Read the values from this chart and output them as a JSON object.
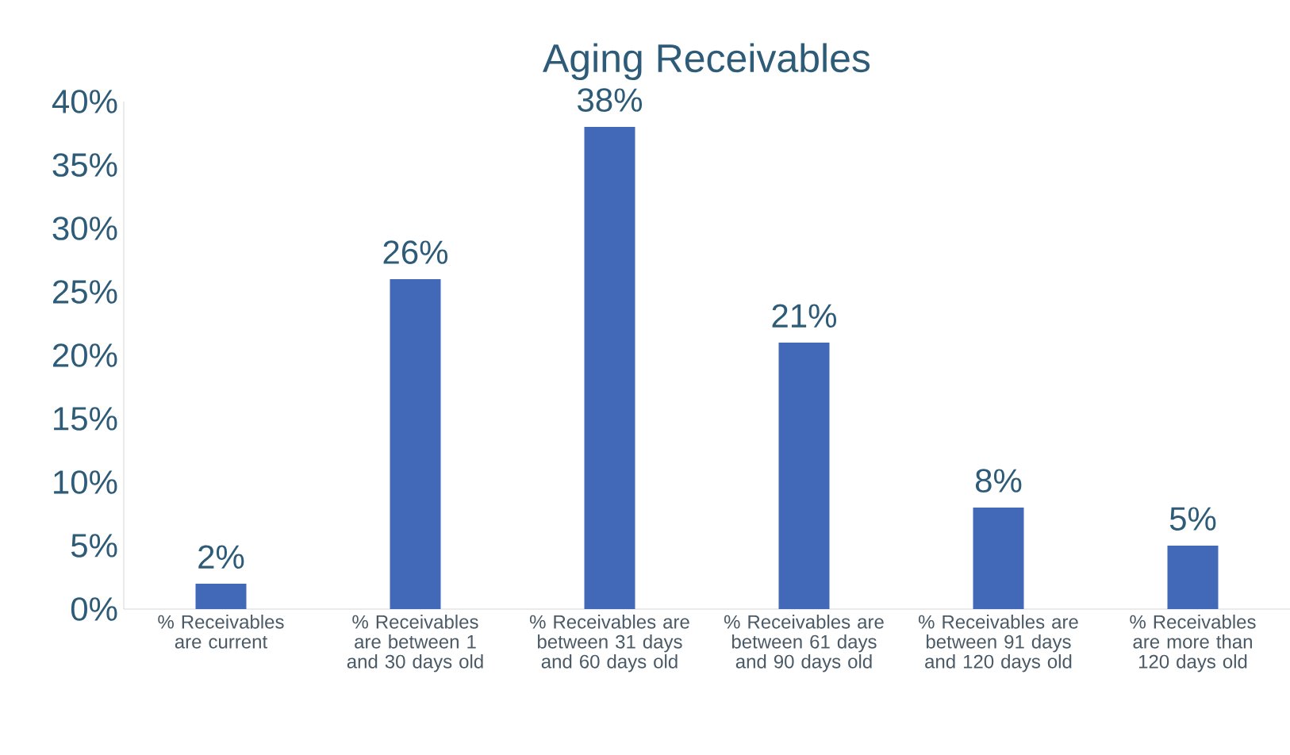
{
  "chart_data": {
    "type": "bar",
    "title": "Aging Receivables",
    "categories": [
      "% Receivables are current",
      "% Receivables are between 1 and 30 days old",
      "% Receivables are between 31 days and 60 days old",
      "% Receivables are between 61 days and 90 days old",
      "% Receivables are between 91 days and 120 days old",
      "% Receivables are more than 120 days old"
    ],
    "values": [
      2,
      26,
      38,
      21,
      8,
      5
    ],
    "value_labels": [
      "2%",
      "26%",
      "38%",
      "21%",
      "8%",
      "5%"
    ],
    "color": "#4169b8",
    "ylim": [
      0,
      40
    ],
    "yticks": [
      {
        "value": 0,
        "label": "0%"
      },
      {
        "value": 5,
        "label": "5%"
      },
      {
        "value": 10,
        "label": "10%"
      },
      {
        "value": 15,
        "label": "15%"
      },
      {
        "value": 20,
        "label": "20%"
      },
      {
        "value": 25,
        "label": "25%"
      },
      {
        "value": 30,
        "label": "30%"
      },
      {
        "value": 35,
        "label": "35%"
      },
      {
        "value": 40,
        "label": "40%"
      }
    ],
    "grid": false
  }
}
